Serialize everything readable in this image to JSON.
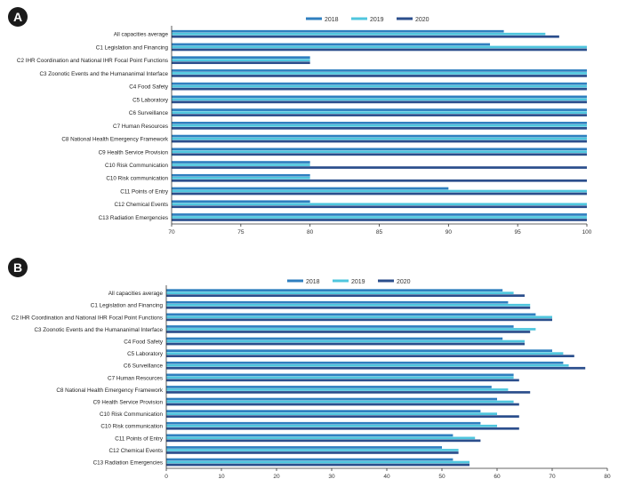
{
  "colors": {
    "s2018": "#2f7fbf",
    "s2019": "#4fc6de",
    "s2020": "#2b4e8c",
    "axis": "#333333",
    "badge": "#1a1a1a"
  },
  "chart_data": [
    {
      "panel_label": "A",
      "type": "bar",
      "orientation": "horizontal",
      "title": "",
      "xlabel": "",
      "ylabel": "",
      "xlim": [
        70,
        100
      ],
      "xticks": [
        "70",
        "75",
        "80",
        "85",
        "90",
        "95",
        "100"
      ],
      "legend_position": "top-center",
      "categories": [
        "All capacities average",
        "C1 Legislation and Financing",
        "C2 IHR Coordination and National IHR Focal Point Functions",
        "C3 Zoonotic Events and the Humananimal Interface",
        "C4 Food Safety",
        "C5 Laboratory",
        "C6 Surveillance",
        "C7 Human Resources",
        "C8 National Health Emergency Framework",
        "C9 Health Service Provision",
        "C10 Risk Communication",
        "C10 Risk communication",
        "C11 Points of Entry",
        "C12 Chemical Events",
        "C13 Radiation Emergencies"
      ],
      "series": [
        {
          "name": "2018",
          "values": [
            94,
            93,
            80,
            100,
            100,
            100,
            100,
            100,
            100,
            100,
            80,
            80,
            90,
            80,
            100
          ]
        },
        {
          "name": "2019",
          "values": [
            97,
            100,
            80,
            100,
            100,
            100,
            100,
            100,
            100,
            100,
            80,
            80,
            100,
            100,
            100
          ]
        },
        {
          "name": "2020",
          "values": [
            98,
            100,
            80,
            100,
            100,
            100,
            100,
            100,
            100,
            100,
            100,
            100,
            100,
            100,
            100
          ]
        }
      ]
    },
    {
      "panel_label": "B",
      "type": "bar",
      "orientation": "horizontal",
      "title": "",
      "xlabel": "",
      "ylabel": "",
      "xlim": [
        0,
        80
      ],
      "xticks": [
        "0",
        "10",
        "20",
        "30",
        "40",
        "50",
        "60",
        "70",
        "80"
      ],
      "legend_position": "top-center",
      "categories": [
        "All capacities average",
        "C1 Legislation and Financing",
        "C2 IHR Coordination and National IHR Focal Point Functions",
        "C3 Zoonotic Events and the Humananimal Interface",
        "C4 Food Safety",
        "C5 Laboratory",
        "C6 Surveillance",
        "C7 Human Resources",
        "C8 National Health Emergency Framework",
        "C9 Health Service Provision",
        "C10 Risk Communication",
        "C10 Risk communication",
        "C11 Points of Entry",
        "C12 Chemical Events",
        "C13 Radiation Emergencies"
      ],
      "series": [
        {
          "name": "2018",
          "values": [
            61,
            62,
            67,
            63,
            61,
            70,
            72,
            63,
            59,
            60,
            57,
            57,
            52,
            50,
            52
          ]
        },
        {
          "name": "2019",
          "values": [
            63,
            66,
            70,
            67,
            65,
            72,
            73,
            63,
            62,
            63,
            60,
            60,
            56,
            53,
            55
          ]
        },
        {
          "name": "2020",
          "values": [
            65,
            66,
            70,
            66,
            65,
            74,
            76,
            64,
            66,
            64,
            64,
            64,
            57,
            53,
            55
          ]
        }
      ]
    }
  ]
}
